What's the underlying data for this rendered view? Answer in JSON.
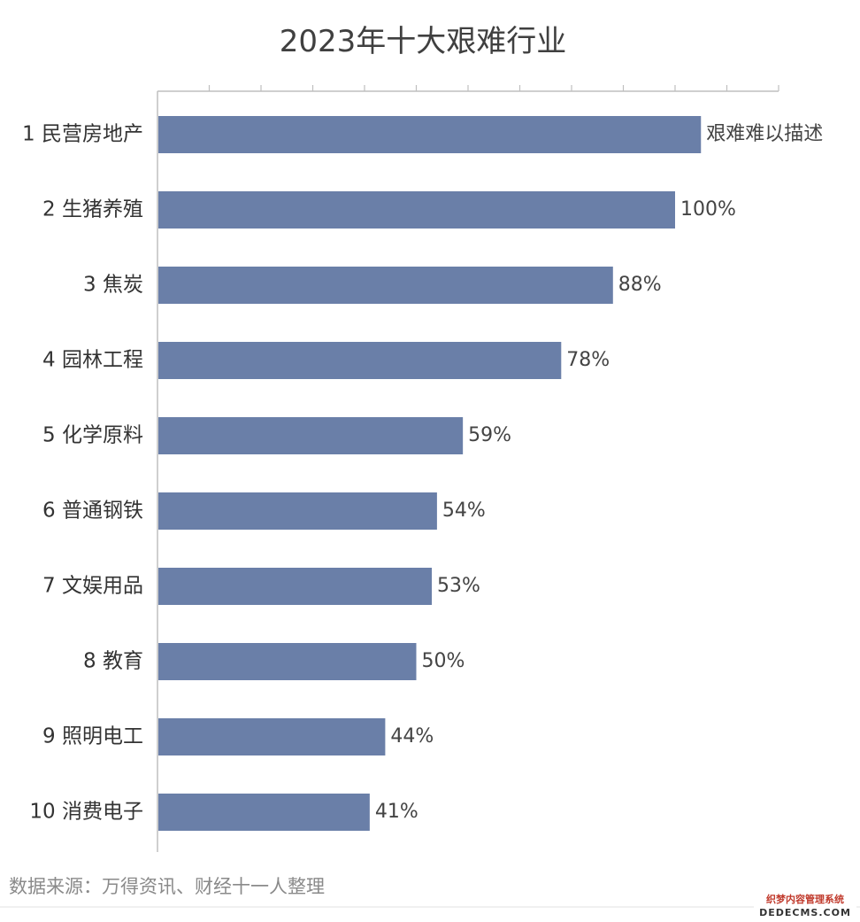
{
  "chart_data": {
    "type": "bar",
    "orientation": "horizontal",
    "title": "2023年十大艰难行业",
    "categories": [
      "1 民营房地产",
      "2 生猪养殖",
      "3 焦炭",
      "4 园林工程",
      "5 化学原料",
      "6 普通钢铁",
      "7 文娱用品",
      "8 教育",
      "9 照明电工",
      "10 消费电子"
    ],
    "values": [
      105,
      100,
      88,
      78,
      59,
      54,
      53,
      50,
      44,
      41
    ],
    "value_labels": [
      "艰难难以描述",
      "100%",
      "88%",
      "78%",
      "59%",
      "54%",
      "53%",
      "50%",
      "44%",
      "41%"
    ],
    "xlim": [
      0,
      120
    ],
    "x_tick_step": 10,
    "grid": false,
    "colors": {
      "bar": "#6a7fa8"
    },
    "source": "数据来源：万得资讯、财经十一人整理"
  },
  "watermark": {
    "line1": "织梦内容管理系统",
    "line2": "DEDECMS.COM"
  }
}
